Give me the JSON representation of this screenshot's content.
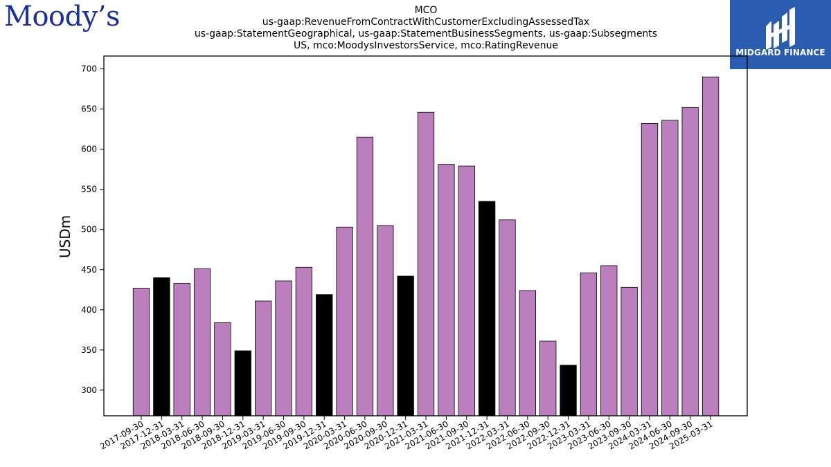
{
  "header": {
    "left_logo_text": "Moody’s",
    "title_lines": [
      "MCO",
      "us-gaap:RevenueFromContractWithCustomerExcludingAssessedTax",
      "us-gaap:StatementGeographical, us-gaap:StatementBusinessSegments, us-gaap:Subsegments",
      "US, mco:MoodysInvestorsService, mco:RatingRevenue"
    ],
    "right_logo_text": "MIDGARD FINANCE"
  },
  "colors": {
    "quarter_bar": "#bc7fbd",
    "year_end_bar": "#000000",
    "brand_blue": "#2a5db0",
    "moodys_blue": "#1a2f9b"
  },
  "chart_data": {
    "type": "bar",
    "title": "",
    "xlabel": "",
    "ylabel": "USDm",
    "ylim": [
      268,
      716
    ],
    "yticks": [
      300,
      350,
      400,
      450,
      500,
      550,
      600,
      650,
      700
    ],
    "grid": false,
    "categories": [
      "2017-09-30",
      "2017-12-31",
      "2018-03-31",
      "2018-06-30",
      "2018-09-30",
      "2018-12-31",
      "2019-03-31",
      "2019-06-30",
      "2019-09-30",
      "2019-12-31",
      "2020-03-31",
      "2020-06-30",
      "2020-09-30",
      "2020-12-31",
      "2021-03-31",
      "2021-06-30",
      "2021-09-30",
      "2021-12-31",
      "2022-03-31",
      "2022-06-30",
      "2022-09-30",
      "2022-12-31",
      "2023-03-31",
      "2023-06-30",
      "2023-09-30",
      "2024-03-31",
      "2024-06-30",
      "2024-09-30",
      "2025-03-31"
    ],
    "values": [
      427,
      440,
      433,
      451,
      384,
      349,
      411,
      436,
      453,
      419,
      503,
      615,
      505,
      442,
      646,
      581,
      579,
      535,
      512,
      424,
      361,
      331,
      446,
      455,
      428,
      632,
      636,
      652,
      690
    ],
    "year_end": [
      false,
      true,
      false,
      false,
      false,
      true,
      false,
      false,
      false,
      true,
      false,
      false,
      false,
      true,
      false,
      false,
      false,
      true,
      false,
      false,
      false,
      true,
      false,
      false,
      false,
      false,
      false,
      false,
      false
    ]
  }
}
